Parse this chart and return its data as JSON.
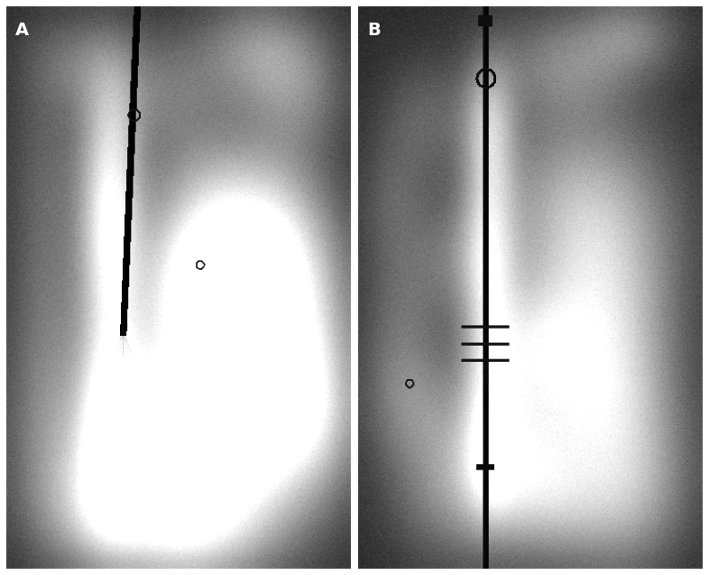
{
  "figure_width": 7.86,
  "figure_height": 6.37,
  "dpi": 100,
  "background_color": "#ffffff",
  "panel_label_A": "A",
  "panel_label_B": "B",
  "panel_label_fontsize": 14,
  "panel_label_fontweight": "bold",
  "panel_label_color": "white",
  "border_color": "white",
  "border_linewidth": 1.5,
  "seed_A": 7,
  "seed_B": 13,
  "base_level": 0.09,
  "noise_std": 0.012
}
